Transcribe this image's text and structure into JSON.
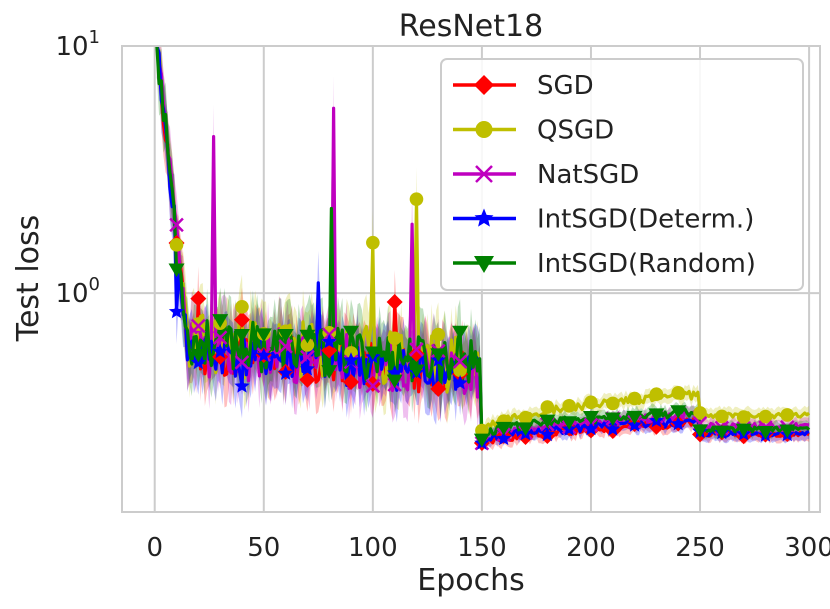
{
  "chart_data": {
    "type": "line",
    "title": "ResNet18",
    "xlabel": "Epochs",
    "ylabel": "Test loss",
    "yscale": "log",
    "xlim": [
      -15,
      305
    ],
    "ylim": [
      0.13,
      10
    ],
    "xticks": [
      0,
      50,
      100,
      150,
      200,
      250,
      300
    ],
    "xtick_labels": [
      "0",
      "50",
      "100",
      "150",
      "200",
      "250",
      "300"
    ],
    "yticks": [
      1,
      10
    ],
    "ytick_labels": [
      {
        "base": "10",
        "exp": "0"
      },
      {
        "base": "10",
        "exp": "1"
      }
    ],
    "grid": true,
    "legend_position": "top-right",
    "series": [
      {
        "name": "SGD",
        "color": "#ff0000",
        "marker": "diamond",
        "seed": 11,
        "start": 10,
        "drop_at": 15,
        "plateau": 0.46,
        "noise": 0.22,
        "after_150": 0.24,
        "rise_to": 0.3,
        "after_250": 0.27,
        "spikes": [
          [
            20,
            0.95
          ],
          [
            40,
            0.78
          ],
          [
            110,
            0.92
          ]
        ]
      },
      {
        "name": "QSGD",
        "color": "#bfbf00",
        "marker": "circle",
        "seed": 23,
        "start": 10,
        "drop_at": 15,
        "plateau": 0.5,
        "noise": 0.28,
        "after_150": 0.27,
        "rise_to": 0.39,
        "after_250": 0.32,
        "spikes": [
          [
            40,
            0.88
          ],
          [
            120,
            2.4
          ],
          [
            100,
            1.6
          ]
        ]
      },
      {
        "name": "NatSGD",
        "color": "#bf00bf",
        "marker": "x",
        "seed": 37,
        "start": 10,
        "drop_at": 15,
        "plateau": 0.47,
        "noise": 0.25,
        "after_150": 0.25,
        "rise_to": 0.32,
        "after_250": 0.29,
        "spikes": [
          [
            27,
            4.3
          ],
          [
            82,
            5.6
          ],
          [
            118,
            1.9
          ]
        ]
      },
      {
        "name": "IntSGD(Determ.)",
        "color": "#0000ff",
        "marker": "star",
        "seed": 41,
        "start": 10,
        "drop_at": 15,
        "plateau": 0.45,
        "noise": 0.2,
        "after_150": 0.25,
        "rise_to": 0.3,
        "after_250": 0.27,
        "spikes": [
          [
            10,
            0.84
          ],
          [
            40,
            0.42
          ],
          [
            75,
            1.1
          ]
        ]
      },
      {
        "name": "IntSGD(Random)",
        "color": "#008000",
        "marker": "triangle-down",
        "seed": 53,
        "start": 10,
        "drop_at": 15,
        "plateau": 0.5,
        "noise": 0.23,
        "after_150": 0.26,
        "rise_to": 0.33,
        "after_250": 0.28,
        "spikes": [
          [
            81,
            2.2
          ],
          [
            10,
            1.25
          ],
          [
            140,
            0.7
          ]
        ]
      }
    ]
  }
}
